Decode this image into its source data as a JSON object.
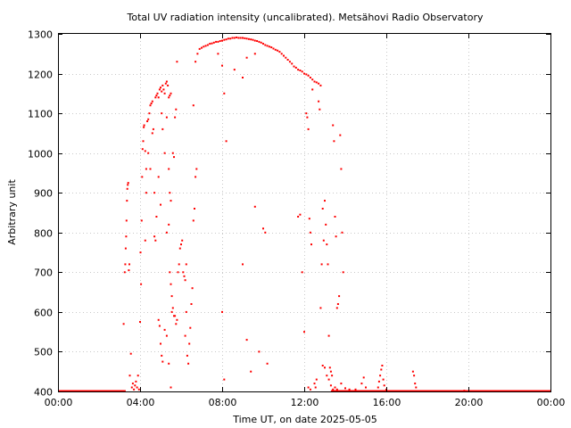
{
  "chart_data": {
    "type": "scatter",
    "title": "Total UV radiation intensity (uncalibrated). Metsähovi Radio Observatory",
    "xlabel": "Time UT, on date 2025-05-05",
    "ylabel": "Arbitrary unit",
    "x_unit": "hours UT",
    "xlim": [
      0,
      24
    ],
    "ylim": [
      400,
      1300
    ],
    "x_ticks": [
      {
        "value": 0,
        "label": "00:00"
      },
      {
        "value": 4,
        "label": "04:00"
      },
      {
        "value": 8,
        "label": "08:00"
      },
      {
        "value": 12,
        "label": "12:00"
      },
      {
        "value": 16,
        "label": "16:00"
      },
      {
        "value": 20,
        "label": "20:00"
      },
      {
        "value": 24,
        "label": "00:00"
      }
    ],
    "y_ticks": [
      400,
      500,
      600,
      700,
      800,
      900,
      1000,
      1100,
      1200,
      1300
    ],
    "grid": true,
    "legend": "none",
    "series_color": "#ff0000",
    "baseline": {
      "y": 400,
      "segments": [
        [
          0,
          3.3
        ],
        [
          13.3,
          24
        ]
      ]
    },
    "series": [
      {
        "points": [
          [
            3.2,
            570
          ],
          [
            3.25,
            700
          ],
          [
            3.28,
            720
          ],
          [
            3.3,
            760
          ],
          [
            3.32,
            790
          ],
          [
            3.34,
            830
          ],
          [
            3.36,
            880
          ],
          [
            3.38,
            910
          ],
          [
            3.4,
            920
          ],
          [
            3.42,
            925
          ],
          [
            3.45,
            705
          ],
          [
            3.48,
            720
          ],
          [
            3.5,
            440
          ],
          [
            3.55,
            495
          ],
          [
            3.6,
            410
          ],
          [
            3.65,
            420
          ],
          [
            3.7,
            405
          ],
          [
            3.75,
            415
          ],
          [
            3.8,
            425
          ],
          [
            3.85,
            410
          ],
          [
            3.9,
            440
          ],
          [
            3.95,
            405
          ],
          [
            4.0,
            575
          ],
          [
            4.02,
            750
          ],
          [
            4.05,
            670
          ],
          [
            4.08,
            830
          ],
          [
            4.1,
            940
          ],
          [
            4.12,
            1010
          ],
          [
            4.15,
            1030
          ],
          [
            4.18,
            1065
          ],
          [
            4.2,
            1070
          ],
          [
            4.25,
            1005
          ],
          [
            4.3,
            960
          ],
          [
            4.35,
            1080
          ],
          [
            4.4,
            1085
          ],
          [
            4.45,
            1100
          ],
          [
            4.5,
            1120
          ],
          [
            4.55,
            1125
          ],
          [
            4.6,
            1130
          ],
          [
            4.25,
            780
          ],
          [
            4.3,
            900
          ],
          [
            4.4,
            1000
          ],
          [
            4.5,
            960
          ],
          [
            4.6,
            1050
          ],
          [
            4.65,
            1060
          ],
          [
            4.7,
            900
          ],
          [
            4.75,
            1140
          ],
          [
            4.8,
            1145
          ],
          [
            4.85,
            1150
          ],
          [
            4.9,
            1140
          ],
          [
            4.95,
            1160
          ],
          [
            5.0,
            1165
          ],
          [
            5.05,
            1155
          ],
          [
            5.1,
            1170
          ],
          [
            5.15,
            1160
          ],
          [
            5.2,
            1150
          ],
          [
            5.25,
            1175
          ],
          [
            5.3,
            1180
          ],
          [
            5.35,
            1170
          ],
          [
            5.4,
            1140
          ],
          [
            5.45,
            1145
          ],
          [
            5.5,
            1150
          ],
          [
            4.7,
            790
          ],
          [
            4.75,
            780
          ],
          [
            4.8,
            840
          ],
          [
            4.9,
            940
          ],
          [
            5.0,
            870
          ],
          [
            5.05,
            1100
          ],
          [
            5.1,
            1060
          ],
          [
            5.2,
            1000
          ],
          [
            5.3,
            1090
          ],
          [
            5.4,
            960
          ],
          [
            5.45,
            900
          ],
          [
            5.5,
            880
          ],
          [
            5.3,
            800
          ],
          [
            5.4,
            820
          ],
          [
            5.45,
            700
          ],
          [
            5.5,
            670
          ],
          [
            5.55,
            640
          ],
          [
            5.6,
            1000
          ],
          [
            5.65,
            990
          ],
          [
            5.7,
            1090
          ],
          [
            5.75,
            1110
          ],
          [
            5.8,
            1230
          ],
          [
            4.9,
            580
          ],
          [
            4.95,
            565
          ],
          [
            5.0,
            520
          ],
          [
            5.05,
            490
          ],
          [
            5.1,
            475
          ],
          [
            5.2,
            555
          ],
          [
            5.3,
            540
          ],
          [
            5.4,
            470
          ],
          [
            5.5,
            410
          ],
          [
            5.55,
            600
          ],
          [
            5.6,
            610
          ],
          [
            5.65,
            590
          ],
          [
            5.7,
            590
          ],
          [
            5.75,
            570
          ],
          [
            5.8,
            580
          ],
          [
            5.85,
            700
          ],
          [
            5.9,
            720
          ],
          [
            5.95,
            760
          ],
          [
            6.0,
            770
          ],
          [
            6.05,
            780
          ],
          [
            6.1,
            700
          ],
          [
            6.15,
            690
          ],
          [
            6.2,
            680
          ],
          [
            6.25,
            720
          ],
          [
            6.2,
            540
          ],
          [
            6.25,
            600
          ],
          [
            6.3,
            490
          ],
          [
            6.35,
            470
          ],
          [
            6.4,
            520
          ],
          [
            6.45,
            560
          ],
          [
            6.5,
            620
          ],
          [
            6.55,
            660
          ],
          [
            6.6,
            830
          ],
          [
            6.65,
            860
          ],
          [
            6.7,
            940
          ],
          [
            6.75,
            960
          ],
          [
            6.6,
            1120
          ],
          [
            6.7,
            1230
          ],
          [
            6.8,
            1250
          ],
          [
            6.9,
            1262
          ],
          [
            7.0,
            1265
          ],
          [
            7.1,
            1268
          ],
          [
            7.2,
            1270
          ],
          [
            7.3,
            1272
          ],
          [
            7.4,
            1275
          ],
          [
            7.5,
            1276
          ],
          [
            7.6,
            1278
          ],
          [
            7.7,
            1280
          ],
          [
            7.8,
            1280
          ],
          [
            7.9,
            1282
          ],
          [
            8.0,
            1283
          ],
          [
            8.1,
            1285
          ],
          [
            8.2,
            1286
          ],
          [
            8.3,
            1288
          ],
          [
            8.4,
            1288
          ],
          [
            8.5,
            1290
          ],
          [
            8.6,
            1290
          ],
          [
            8.7,
            1291
          ],
          [
            8.8,
            1290
          ],
          [
            8.9,
            1290
          ],
          [
            9.0,
            1290
          ],
          [
            9.1,
            1289
          ],
          [
            9.2,
            1288
          ],
          [
            9.3,
            1287
          ],
          [
            9.4,
            1286
          ],
          [
            9.5,
            1285
          ],
          [
            9.6,
            1283
          ],
          [
            9.7,
            1282
          ],
          [
            9.8,
            1280
          ],
          [
            9.9,
            1278
          ],
          [
            10.0,
            1275
          ],
          [
            10.1,
            1272
          ],
          [
            10.2,
            1270
          ],
          [
            10.3,
            1268
          ],
          [
            10.4,
            1266
          ],
          [
            10.5,
            1263
          ],
          [
            10.6,
            1260
          ],
          [
            10.7,
            1258
          ],
          [
            10.8,
            1255
          ],
          [
            10.9,
            1250
          ],
          [
            11.0,
            1245
          ],
          [
            11.1,
            1240
          ],
          [
            11.2,
            1235
          ],
          [
            11.3,
            1230
          ],
          [
            11.4,
            1225
          ],
          [
            11.5,
            1218
          ],
          [
            11.6,
            1215
          ],
          [
            11.7,
            1210
          ],
          [
            11.8,
            1208
          ],
          [
            11.9,
            1205
          ],
          [
            12.0,
            1200
          ],
          [
            12.1,
            1198
          ],
          [
            12.2,
            1195
          ],
          [
            12.3,
            1190
          ],
          [
            12.4,
            1185
          ],
          [
            12.5,
            1180
          ],
          [
            12.6,
            1178
          ],
          [
            12.7,
            1175
          ],
          [
            12.8,
            1170
          ],
          [
            7.8,
            1250
          ],
          [
            8.0,
            1220
          ],
          [
            8.1,
            1150
          ],
          [
            8.2,
            1030
          ],
          [
            8.6,
            1210
          ],
          [
            9.0,
            1190
          ],
          [
            9.2,
            1240
          ],
          [
            9.6,
            1250
          ],
          [
            8.0,
            600
          ],
          [
            8.1,
            430
          ],
          [
            9.0,
            720
          ],
          [
            9.2,
            530
          ],
          [
            9.4,
            450
          ],
          [
            9.6,
            865
          ],
          [
            9.8,
            500
          ],
          [
            10.0,
            810
          ],
          [
            10.1,
            800
          ],
          [
            10.2,
            470
          ],
          [
            11.7,
            840
          ],
          [
            11.8,
            845
          ],
          [
            11.9,
            700
          ],
          [
            12.0,
            550
          ],
          [
            12.1,
            1100
          ],
          [
            12.15,
            1090
          ],
          [
            12.2,
            1060
          ],
          [
            12.25,
            835
          ],
          [
            12.3,
            800
          ],
          [
            12.35,
            770
          ],
          [
            12.4,
            1160
          ],
          [
            12.5,
            420
          ],
          [
            12.55,
            410
          ],
          [
            12.6,
            430
          ],
          [
            12.7,
            1130
          ],
          [
            12.75,
            1110
          ],
          [
            12.8,
            610
          ],
          [
            12.85,
            720
          ],
          [
            12.9,
            860
          ],
          [
            12.95,
            780
          ],
          [
            13.0,
            880
          ],
          [
            13.05,
            820
          ],
          [
            13.1,
            770
          ],
          [
            13.15,
            720
          ],
          [
            13.2,
            540
          ],
          [
            13.25,
            460
          ],
          [
            13.3,
            450
          ],
          [
            13.35,
            440
          ],
          [
            13.4,
            1070
          ],
          [
            13.45,
            1030
          ],
          [
            13.5,
            840
          ],
          [
            13.55,
            790
          ],
          [
            13.6,
            610
          ],
          [
            13.65,
            620
          ],
          [
            13.7,
            640
          ],
          [
            13.75,
            1045
          ],
          [
            13.8,
            960
          ],
          [
            13.85,
            800
          ],
          [
            13.9,
            700
          ],
          [
            12.2,
            410
          ],
          [
            12.3,
            405
          ],
          [
            12.9,
            465
          ],
          [
            13.0,
            460
          ],
          [
            13.1,
            440
          ],
          [
            13.2,
            430
          ],
          [
            13.3,
            415
          ],
          [
            13.4,
            405
          ],
          [
            13.5,
            410
          ],
          [
            13.6,
            405
          ],
          [
            13.8,
            420
          ],
          [
            14.0,
            408
          ],
          [
            14.2,
            405
          ],
          [
            14.5,
            405
          ],
          [
            14.8,
            420
          ],
          [
            14.9,
            435
          ],
          [
            15.0,
            410
          ],
          [
            15.6,
            410
          ],
          [
            15.65,
            425
          ],
          [
            15.7,
            440
          ],
          [
            15.75,
            455
          ],
          [
            15.8,
            465
          ],
          [
            15.85,
            430
          ],
          [
            15.9,
            415
          ],
          [
            16.0,
            405
          ],
          [
            17.3,
            450
          ],
          [
            17.35,
            440
          ],
          [
            17.4,
            420
          ],
          [
            17.45,
            410
          ],
          [
            19.8,
            402
          ]
        ]
      }
    ]
  }
}
